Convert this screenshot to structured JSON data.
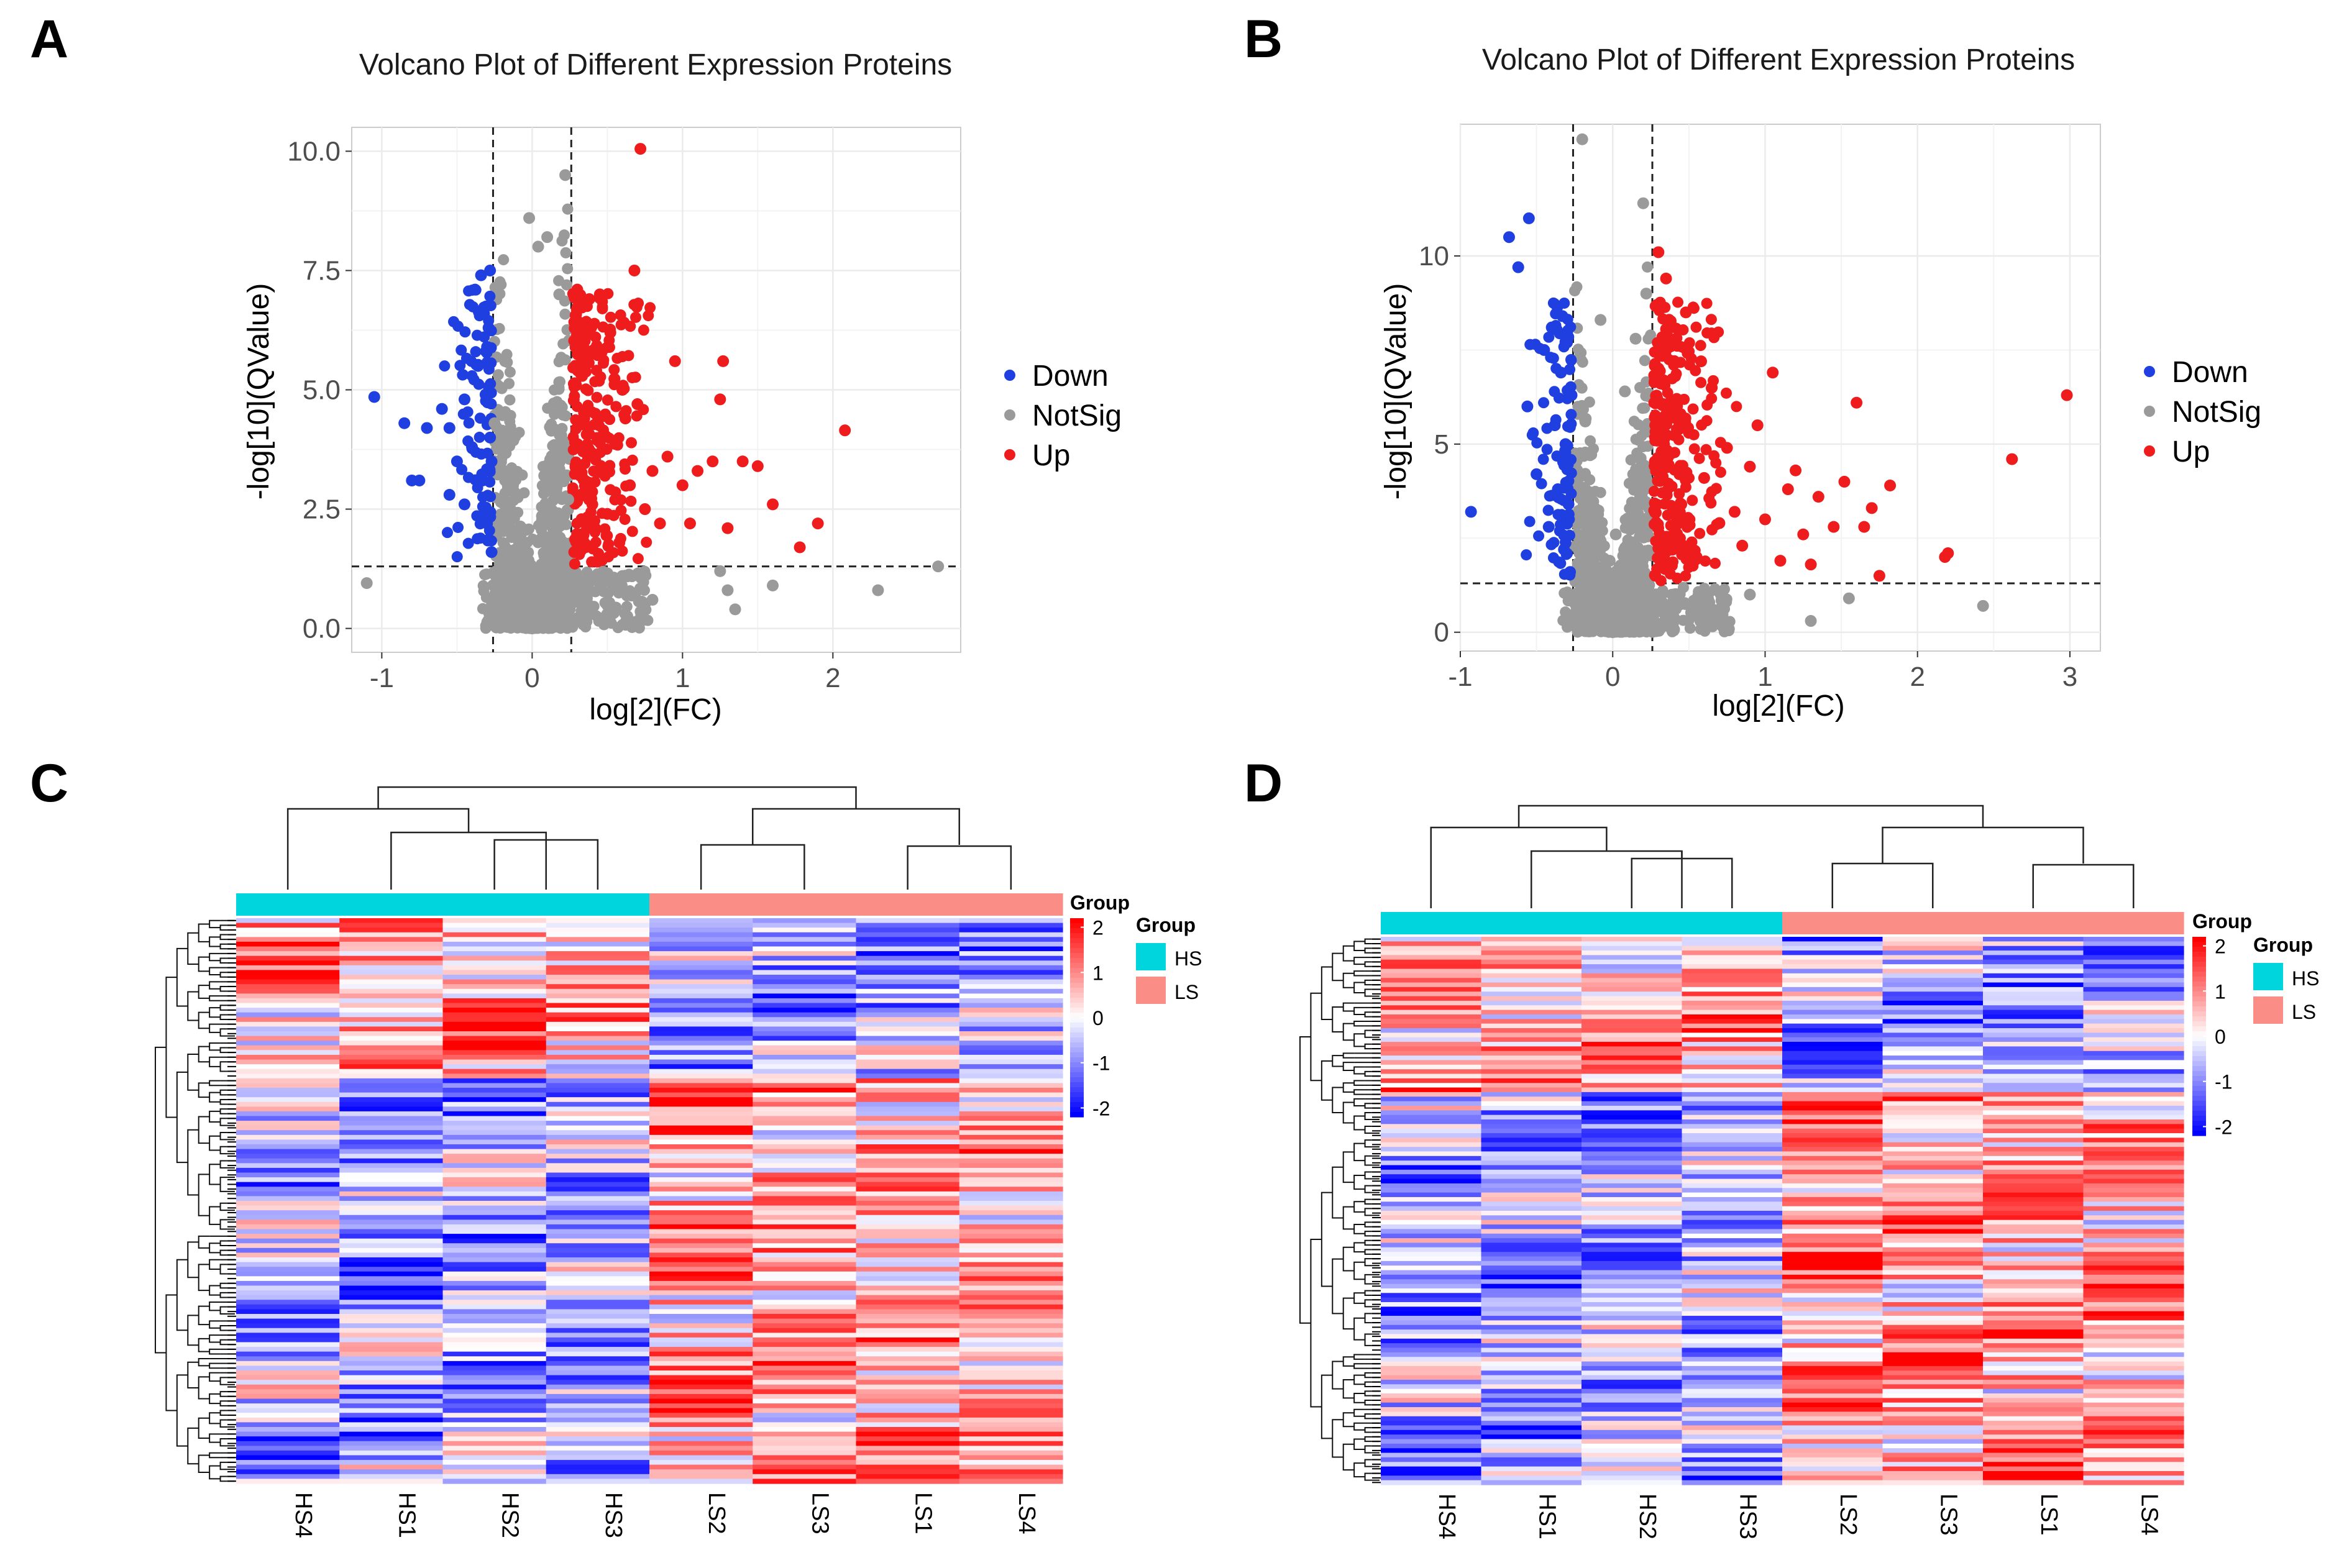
{
  "colors": {
    "down": "#1f3fe0",
    "notsig": "#9a9a9a",
    "up": "#ee1c1c",
    "hs": "#00d5dd",
    "ls": "#fa8e86",
    "heat_low": "#0000ff",
    "heat_mid": "#ffffff",
    "heat_high": "#ff0000"
  },
  "chart_data": [
    {
      "panel": "A",
      "type": "scatter",
      "title": "Volcano Plot of Different Expression Proteins",
      "xlabel": "log[2](FC)",
      "ylabel": "-log[10](QValue)",
      "xlim": [
        -1.2,
        2.85
      ],
      "ylim": [
        -0.5,
        10.5
      ],
      "xticks": [
        -1,
        0,
        1,
        2
      ],
      "xtick_labels": [
        "-1",
        "0",
        "1",
        "2"
      ],
      "yticks": [
        0,
        2.5,
        5,
        7.5,
        10
      ],
      "ytick_labels": [
        "0.0",
        "2.5",
        "5.0",
        "7.5",
        "10.0"
      ],
      "fc_threshold": [
        -0.26,
        0.26
      ],
      "q_threshold": 1.3,
      "legend": {
        "position": "right",
        "items": [
          "Down",
          "NotSig",
          "Up"
        ]
      },
      "series": [
        {
          "name": "Down",
          "points": [
            [
              -1.05,
              4.85
            ],
            [
              -0.85,
              4.3
            ],
            [
              -0.8,
              3.1
            ],
            [
              -0.75,
              3.1
            ],
            [
              -0.7,
              4.2
            ],
            [
              -0.6,
              4.6
            ],
            [
              -0.55,
              4.2
            ],
            [
              -0.55,
              2.8
            ],
            [
              -0.5,
              3.5
            ],
            [
              -0.45,
              4.8
            ],
            [
              -0.45,
              2.6
            ],
            [
              -0.4,
              3.8
            ],
            [
              -0.38,
              7.1
            ],
            [
              -0.36,
              5.5
            ],
            [
              -0.34,
              7.4
            ],
            [
              -0.33,
              3.1
            ],
            [
              -0.32,
              6.6
            ],
            [
              -0.31,
              4.9
            ],
            [
              -0.3,
              5.9
            ],
            [
              -0.3,
              2.2
            ],
            [
              -0.29,
              6.3
            ],
            [
              -0.28,
              7.5
            ],
            [
              -0.28,
              4.0
            ],
            [
              -0.27,
              3.5
            ],
            [
              -0.27,
              1.6
            ]
          ]
        },
        {
          "name": "NotSig",
          "points": [
            [
              -1.1,
              0.95
            ],
            [
              -0.25,
              4.3
            ],
            [
              -0.22,
              1.2
            ],
            [
              -0.2,
              0.8
            ],
            [
              -0.18,
              5.6
            ],
            [
              -0.15,
              0.5
            ],
            [
              -0.12,
              2.3
            ],
            [
              -0.1,
              0.3
            ],
            [
              -0.08,
              1.7
            ],
            [
              -0.05,
              0.1
            ],
            [
              -0.02,
              8.6
            ],
            [
              0.0,
              0.0
            ],
            [
              0.02,
              1.1
            ],
            [
              0.04,
              8.0
            ],
            [
              0.05,
              0.6
            ],
            [
              0.08,
              3.2
            ],
            [
              0.1,
              8.2
            ],
            [
              0.12,
              0.2
            ],
            [
              0.15,
              1.5
            ],
            [
              0.18,
              7.0
            ],
            [
              0.2,
              0.9
            ],
            [
              0.22,
              9.5
            ],
            [
              0.24,
              2.7
            ],
            [
              0.25,
              0.4
            ],
            [
              0.35,
              0.8
            ],
            [
              0.5,
              0.3
            ],
            [
              0.6,
              1.1
            ],
            [
              0.8,
              0.6
            ],
            [
              1.25,
              1.2
            ],
            [
              1.3,
              0.8
            ],
            [
              1.35,
              0.4
            ],
            [
              1.6,
              0.9
            ],
            [
              2.3,
              0.8
            ],
            [
              2.7,
              1.3
            ]
          ]
        },
        {
          "name": "Up",
          "points": [
            [
              0.28,
              1.6
            ],
            [
              0.3,
              7.1
            ],
            [
              0.32,
              3.2
            ],
            [
              0.35,
              5.8
            ],
            [
              0.38,
              6.9
            ],
            [
              0.4,
              2.6
            ],
            [
              0.42,
              4.5
            ],
            [
              0.45,
              7.0
            ],
            [
              0.48,
              3.3
            ],
            [
              0.5,
              2.4
            ],
            [
              0.52,
              6.2
            ],
            [
              0.55,
              3.9
            ],
            [
              0.58,
              1.8
            ],
            [
              0.6,
              5.0
            ],
            [
              0.62,
              4.4
            ],
            [
              0.65,
              3.0
            ],
            [
              0.68,
              7.5
            ],
            [
              0.7,
              4.7
            ],
            [
              0.72,
              10.05
            ],
            [
              0.75,
              2.5
            ],
            [
              0.8,
              3.3
            ],
            [
              0.85,
              2.2
            ],
            [
              0.9,
              3.6
            ],
            [
              0.95,
              5.6
            ],
            [
              1.0,
              3.0
            ],
            [
              1.05,
              2.2
            ],
            [
              1.1,
              3.3
            ],
            [
              1.2,
              3.5
            ],
            [
              1.25,
              4.8
            ],
            [
              1.27,
              5.6
            ],
            [
              1.3,
              2.1
            ],
            [
              1.4,
              3.5
            ],
            [
              1.5,
              3.4
            ],
            [
              1.6,
              2.6
            ],
            [
              1.78,
              1.7
            ],
            [
              1.9,
              2.2
            ],
            [
              2.08,
              4.15
            ]
          ]
        }
      ]
    },
    {
      "panel": "B",
      "type": "scatter",
      "title": "Volcano Plot of Different Expression Proteins",
      "xlabel": "log[2](FC)",
      "ylabel": "-log[10](QValue)",
      "xlim": [
        -1.0,
        3.2
      ],
      "ylim": [
        -0.5,
        13.5
      ],
      "xticks": [
        -1,
        0,
        1,
        2,
        3
      ],
      "xtick_labels": [
        "-1",
        "0",
        "1",
        "2",
        "3"
      ],
      "yticks": [
        0,
        5,
        10
      ],
      "ytick_labels": [
        "0",
        "5",
        "10"
      ],
      "fc_threshold": [
        -0.26,
        0.26
      ],
      "q_threshold": 1.3,
      "legend": {
        "position": "right",
        "items": [
          "Down",
          "NotSig",
          "Up"
        ]
      },
      "series": [
        {
          "name": "Down",
          "points": [
            [
              -0.93,
              3.2
            ],
            [
              -0.68,
              10.5
            ],
            [
              -0.62,
              9.7
            ],
            [
              -0.56,
              6.0
            ],
            [
              -0.55,
              11.0
            ],
            [
              -0.5,
              4.2
            ],
            [
              -0.45,
              7.5
            ],
            [
              -0.42,
              2.8
            ],
            [
              -0.4,
              8.1
            ],
            [
              -0.38,
              5.5
            ],
            [
              -0.36,
              3.8
            ],
            [
              -0.34,
              6.9
            ],
            [
              -0.33,
              8.4
            ],
            [
              -0.32,
              2.2
            ],
            [
              -0.31,
              5.0
            ],
            [
              -0.3,
              7.7
            ],
            [
              -0.29,
              3.4
            ],
            [
              -0.28,
              1.6
            ],
            [
              -0.27,
              6.3
            ]
          ]
        },
        {
          "name": "NotSig",
          "points": [
            [
              -0.2,
              13.1
            ],
            [
              -0.22,
              1.0
            ],
            [
              -0.18,
              5.6
            ],
            [
              -0.15,
              0.5
            ],
            [
              -0.12,
              3.2
            ],
            [
              -0.1,
              0.3
            ],
            [
              -0.08,
              8.3
            ],
            [
              -0.05,
              0.1
            ],
            [
              -0.02,
              1.9
            ],
            [
              0.0,
              0.0
            ],
            [
              0.02,
              2.6
            ],
            [
              0.05,
              0.4
            ],
            [
              0.08,
              6.4
            ],
            [
              0.1,
              1.3
            ],
            [
              0.12,
              0.2
            ],
            [
              0.15,
              7.8
            ],
            [
              0.18,
              3.6
            ],
            [
              0.2,
              11.4
            ],
            [
              0.22,
              9.0
            ],
            [
              0.25,
              0.7
            ],
            [
              0.4,
              0.9
            ],
            [
              0.6,
              0.6
            ],
            [
              0.9,
              1.0
            ],
            [
              1.3,
              0.3
            ],
            [
              1.55,
              0.9
            ],
            [
              2.43,
              0.7
            ]
          ]
        },
        {
          "name": "Up",
          "points": [
            [
              0.28,
              1.5
            ],
            [
              0.3,
              10.1
            ],
            [
              0.32,
              4.8
            ],
            [
              0.35,
              9.4
            ],
            [
              0.38,
              7.6
            ],
            [
              0.4,
              2.6
            ],
            [
              0.42,
              6.2
            ],
            [
              0.45,
              3.4
            ],
            [
              0.48,
              8.5
            ],
            [
              0.5,
              5.3
            ],
            [
              0.55,
              2.0
            ],
            [
              0.58,
              7.2
            ],
            [
              0.6,
              4.1
            ],
            [
              0.65,
              6.5
            ],
            [
              0.7,
              2.9
            ],
            [
              0.75,
              4.9
            ],
            [
              0.8,
              3.2
            ],
            [
              0.85,
              2.3
            ],
            [
              0.9,
              4.4
            ],
            [
              0.95,
              5.5
            ],
            [
              1.0,
              3.0
            ],
            [
              1.05,
              6.9
            ],
            [
              1.1,
              1.9
            ],
            [
              1.15,
              3.8
            ],
            [
              1.2,
              4.3
            ],
            [
              1.25,
              2.6
            ],
            [
              1.3,
              1.8
            ],
            [
              1.35,
              3.6
            ],
            [
              1.45,
              2.8
            ],
            [
              1.52,
              4.0
            ],
            [
              1.6,
              6.1
            ],
            [
              1.65,
              2.8
            ],
            [
              1.7,
              3.3
            ],
            [
              1.75,
              1.5
            ],
            [
              1.82,
              3.9
            ],
            [
              2.18,
              2.0
            ],
            [
              2.2,
              2.1
            ],
            [
              2.62,
              4.6
            ],
            [
              2.98,
              6.3
            ]
          ]
        }
      ]
    },
    {
      "panel": "C",
      "type": "heatmap",
      "columns": [
        "HS4",
        "HS1",
        "HS2",
        "HS3",
        "LS2",
        "LS3",
        "LS1",
        "LS4"
      ],
      "groups": [
        "HS",
        "HS",
        "HS",
        "HS",
        "LS",
        "LS",
        "LS",
        "LS"
      ],
      "legend_title": "Group",
      "group_legend_title": "Group",
      "group_legend_items": [
        "HS",
        "LS"
      ],
      "colorbar_ticks": [
        2,
        1,
        0,
        -1,
        -2
      ],
      "colorbar_tick_labels": [
        "2",
        "1",
        "0",
        "-1",
        "-2"
      ],
      "colorbar_range": [
        -2.2,
        2.2
      ],
      "rows": 120
    },
    {
      "panel": "D",
      "type": "heatmap",
      "columns": [
        "HS4",
        "HS1",
        "HS2",
        "HS3",
        "LS2",
        "LS3",
        "LS1",
        "LS4"
      ],
      "groups": [
        "HS",
        "HS",
        "HS",
        "HS",
        "LS",
        "LS",
        "LS",
        "LS"
      ],
      "legend_title": "Group",
      "group_legend_title": "Group",
      "group_legend_items": [
        "HS",
        "LS"
      ],
      "colorbar_ticks": [
        2,
        1,
        0,
        -1,
        -2
      ],
      "colorbar_tick_labels": [
        "2",
        "1",
        "0",
        "-1",
        "-2"
      ],
      "colorbar_range": [
        -2.2,
        2.2
      ],
      "rows": 120
    }
  ],
  "panels": {
    "a": "A",
    "b": "B",
    "c": "C",
    "d": "D"
  }
}
